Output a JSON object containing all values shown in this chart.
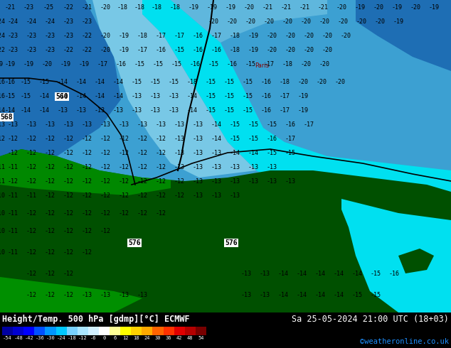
{
  "title_left": "Height/Temp. 500 hPa [gdmp][°C] ECMWF",
  "title_right": "Sa 25-05-2024 21:00 UTC (18+03)",
  "credit": "©weatheronline.co.uk",
  "colorbar_colors": [
    "#0000a0",
    "#0000d0",
    "#0000ff",
    "#0050ff",
    "#0096ff",
    "#00c8ff",
    "#78d2ff",
    "#aae6ff",
    "#d2f0ff",
    "#ffffff",
    "#ffff96",
    "#ffff00",
    "#ffd200",
    "#ffaa00",
    "#ff6400",
    "#ff3200",
    "#e00000",
    "#b40000",
    "#780000"
  ],
  "colorbar_labels": [
    "-54",
    "-48",
    "-42",
    "-36",
    "-30",
    "-24",
    "-18",
    "-12",
    "-6",
    "0",
    "6",
    "12",
    "18",
    "24",
    "30",
    "36",
    "42",
    "48",
    "54"
  ],
  "bg_dark_blue": "#1e6eb4",
  "bg_mid_blue": "#3ca0d2",
  "bg_light_blue": "#78c8e6",
  "bg_cyan": "#00e0f0",
  "bg_green_dark": "#005000",
  "bg_green_mid": "#007800",
  "bg_green_light": "#00a000",
  "fig_width": 6.34,
  "fig_height": 4.9,
  "dpi": 100
}
